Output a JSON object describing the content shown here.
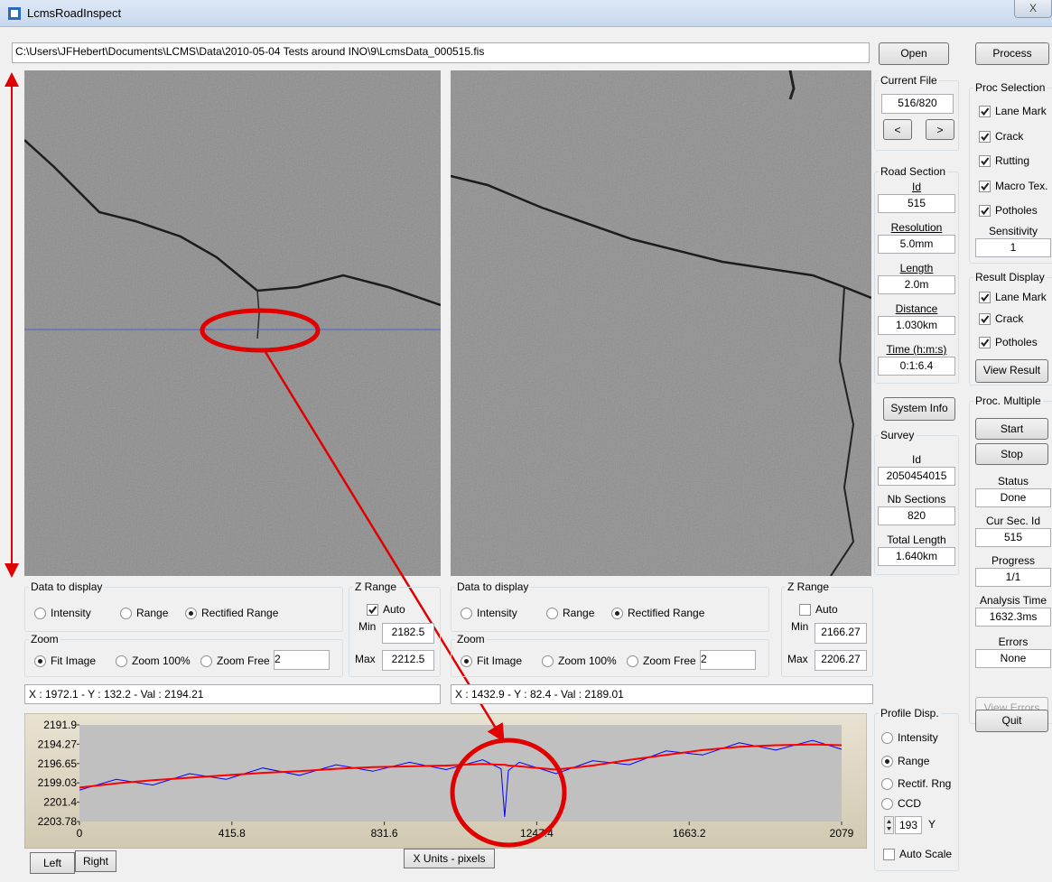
{
  "window": {
    "title": "LcmsRoadInspect",
    "close": "X"
  },
  "toolbar": {
    "file_path": "C:\\Users\\JFHebert\\Documents\\LCMS\\Data\\2010-05-04 Tests around INO\\9\\LcmsData_000515.fis",
    "open": "Open",
    "process": "Process"
  },
  "left_view": {
    "data_group": "Data to display",
    "radios": [
      "Intensity",
      "Range",
      "Rectified Range"
    ],
    "selected": 2,
    "zoom_group": "Zoom",
    "zoom_radios": [
      "Fit Image",
      "Zoom 100%",
      "Zoom Free"
    ],
    "zoom_selected": 0,
    "zoom_value": "2",
    "zrange_group": "Z Range",
    "auto_label": "Auto",
    "auto": true,
    "min_label": "Min",
    "min": "2182.5",
    "max_label": "Max",
    "max": "2212.5",
    "status": "X : 1972.1 - Y : 132.2 - Val : 2194.21"
  },
  "right_view": {
    "data_group": "Data to display",
    "radios": [
      "Intensity",
      "Range",
      "Rectified Range"
    ],
    "selected": 2,
    "zoom_group": "Zoom",
    "zoom_radios": [
      "Fit Image",
      "Zoom 100%",
      "Zoom Free"
    ],
    "zoom_selected": 0,
    "zoom_value": "2",
    "zrange_group": "Z Range",
    "auto_label": "Auto",
    "auto": false,
    "min_label": "Min",
    "min": "2166.27",
    "max_label": "Max",
    "max": "2206.27",
    "status": "X : 1432.9 - Y : 82.4 - Val : 2189.01"
  },
  "current_file": {
    "group": "Current File",
    "value": "516/820",
    "prev": "<",
    "next": ">"
  },
  "road_section": {
    "group": "Road Section",
    "fields": [
      {
        "label": "Id",
        "value": "515"
      },
      {
        "label": "Resolution",
        "value": "5.0mm"
      },
      {
        "label": "Length",
        "value": "2.0m"
      },
      {
        "label": "Distance",
        "value": "1.030km"
      },
      {
        "label": "Time (h:m:s)",
        "value": "0:1:6.4"
      }
    ]
  },
  "system_info": "System Info",
  "survey": {
    "group": "Survey",
    "fields": [
      {
        "label": "Id",
        "value": "2050454015"
      },
      {
        "label": "Nb Sections",
        "value": "820"
      },
      {
        "label": "Total Length",
        "value": "1.640km"
      }
    ]
  },
  "profile_disp": {
    "group": "Profile Disp.",
    "options": [
      "Intensity",
      "Range",
      "Rectif. Rng",
      "CCD"
    ],
    "selected": 1,
    "spin_value": "193",
    "spin_label": "Y",
    "auto_scale": "Auto Scale",
    "auto_scale_checked": false
  },
  "proc_selection": {
    "group": "Proc Selection",
    "items": [
      {
        "label": "Lane Mark",
        "checked": true
      },
      {
        "label": "Crack",
        "checked": true
      },
      {
        "label": "Rutting",
        "checked": true
      },
      {
        "label": "Macro Tex.",
        "checked": true
      },
      {
        "label": "Potholes",
        "checked": true
      }
    ],
    "sensitivity_label": "Sensitivity",
    "sensitivity": "1"
  },
  "result_display": {
    "group": "Result Display",
    "items": [
      {
        "label": "Lane Mark",
        "checked": true
      },
      {
        "label": "Crack",
        "checked": true
      },
      {
        "label": "Potholes",
        "checked": true
      }
    ],
    "view_result": "View Result"
  },
  "proc_multiple": {
    "group": "Proc. Multiple",
    "start": "Start",
    "stop": "Stop",
    "fields": [
      {
        "label": "Status",
        "value": "Done"
      },
      {
        "label": "Cur Sec. Id",
        "value": "515"
      },
      {
        "label": "Progress",
        "value": "1/1"
      },
      {
        "label": "Analysis Time",
        "value": "1632.3ms"
      },
      {
        "label": "Errors",
        "value": "None"
      }
    ],
    "view_errors": "View Errors"
  },
  "quit": "Quit",
  "profile_buttons": {
    "left": "Left",
    "right": "Right",
    "x_units": "X Units - pixels"
  },
  "chart_data": {
    "type": "line",
    "x": [
      0,
      100,
      200,
      300,
      400,
      500,
      600,
      700,
      800,
      900,
      1000,
      1100,
      1150,
      1160,
      1170,
      1200,
      1300,
      1400,
      1500,
      1600,
      1700,
      1800,
      1900,
      2000,
      2079
    ],
    "series": [
      {
        "color": "#0000ff",
        "values": [
          2199.9,
          2198.6,
          2199.3,
          2197.9,
          2198.6,
          2197.2,
          2198.1,
          2196.8,
          2197.6,
          2196.5,
          2197.4,
          2196.2,
          2197.3,
          2203.2,
          2197.5,
          2196.5,
          2197.9,
          2196.3,
          2196.8,
          2195.1,
          2195.6,
          2194.1,
          2195.0,
          2193.8,
          2194.9
        ]
      },
      {
        "color": "#ff0000",
        "values": [
          2199.6,
          2199.1,
          2198.7,
          2198.4,
          2198.1,
          2197.8,
          2197.6,
          2197.3,
          2197.1,
          2197.0,
          2196.9,
          2196.7,
          2196.8,
          2196.8,
          2196.9,
          2197.0,
          2197.4,
          2196.9,
          2196.2,
          2195.6,
          2195.0,
          2194.6,
          2194.4,
          2194.3,
          2194.4
        ]
      }
    ],
    "xlim": [
      0,
      2079
    ],
    "xticks": [
      0,
      415.8,
      831.6,
      1247.4,
      1663.2,
      2079
    ],
    "ylim": [
      2203.78,
      2191.9
    ],
    "yticks": [
      2191.9,
      2194.27,
      2196.65,
      2199.03,
      2201.4,
      2203.78
    ]
  }
}
